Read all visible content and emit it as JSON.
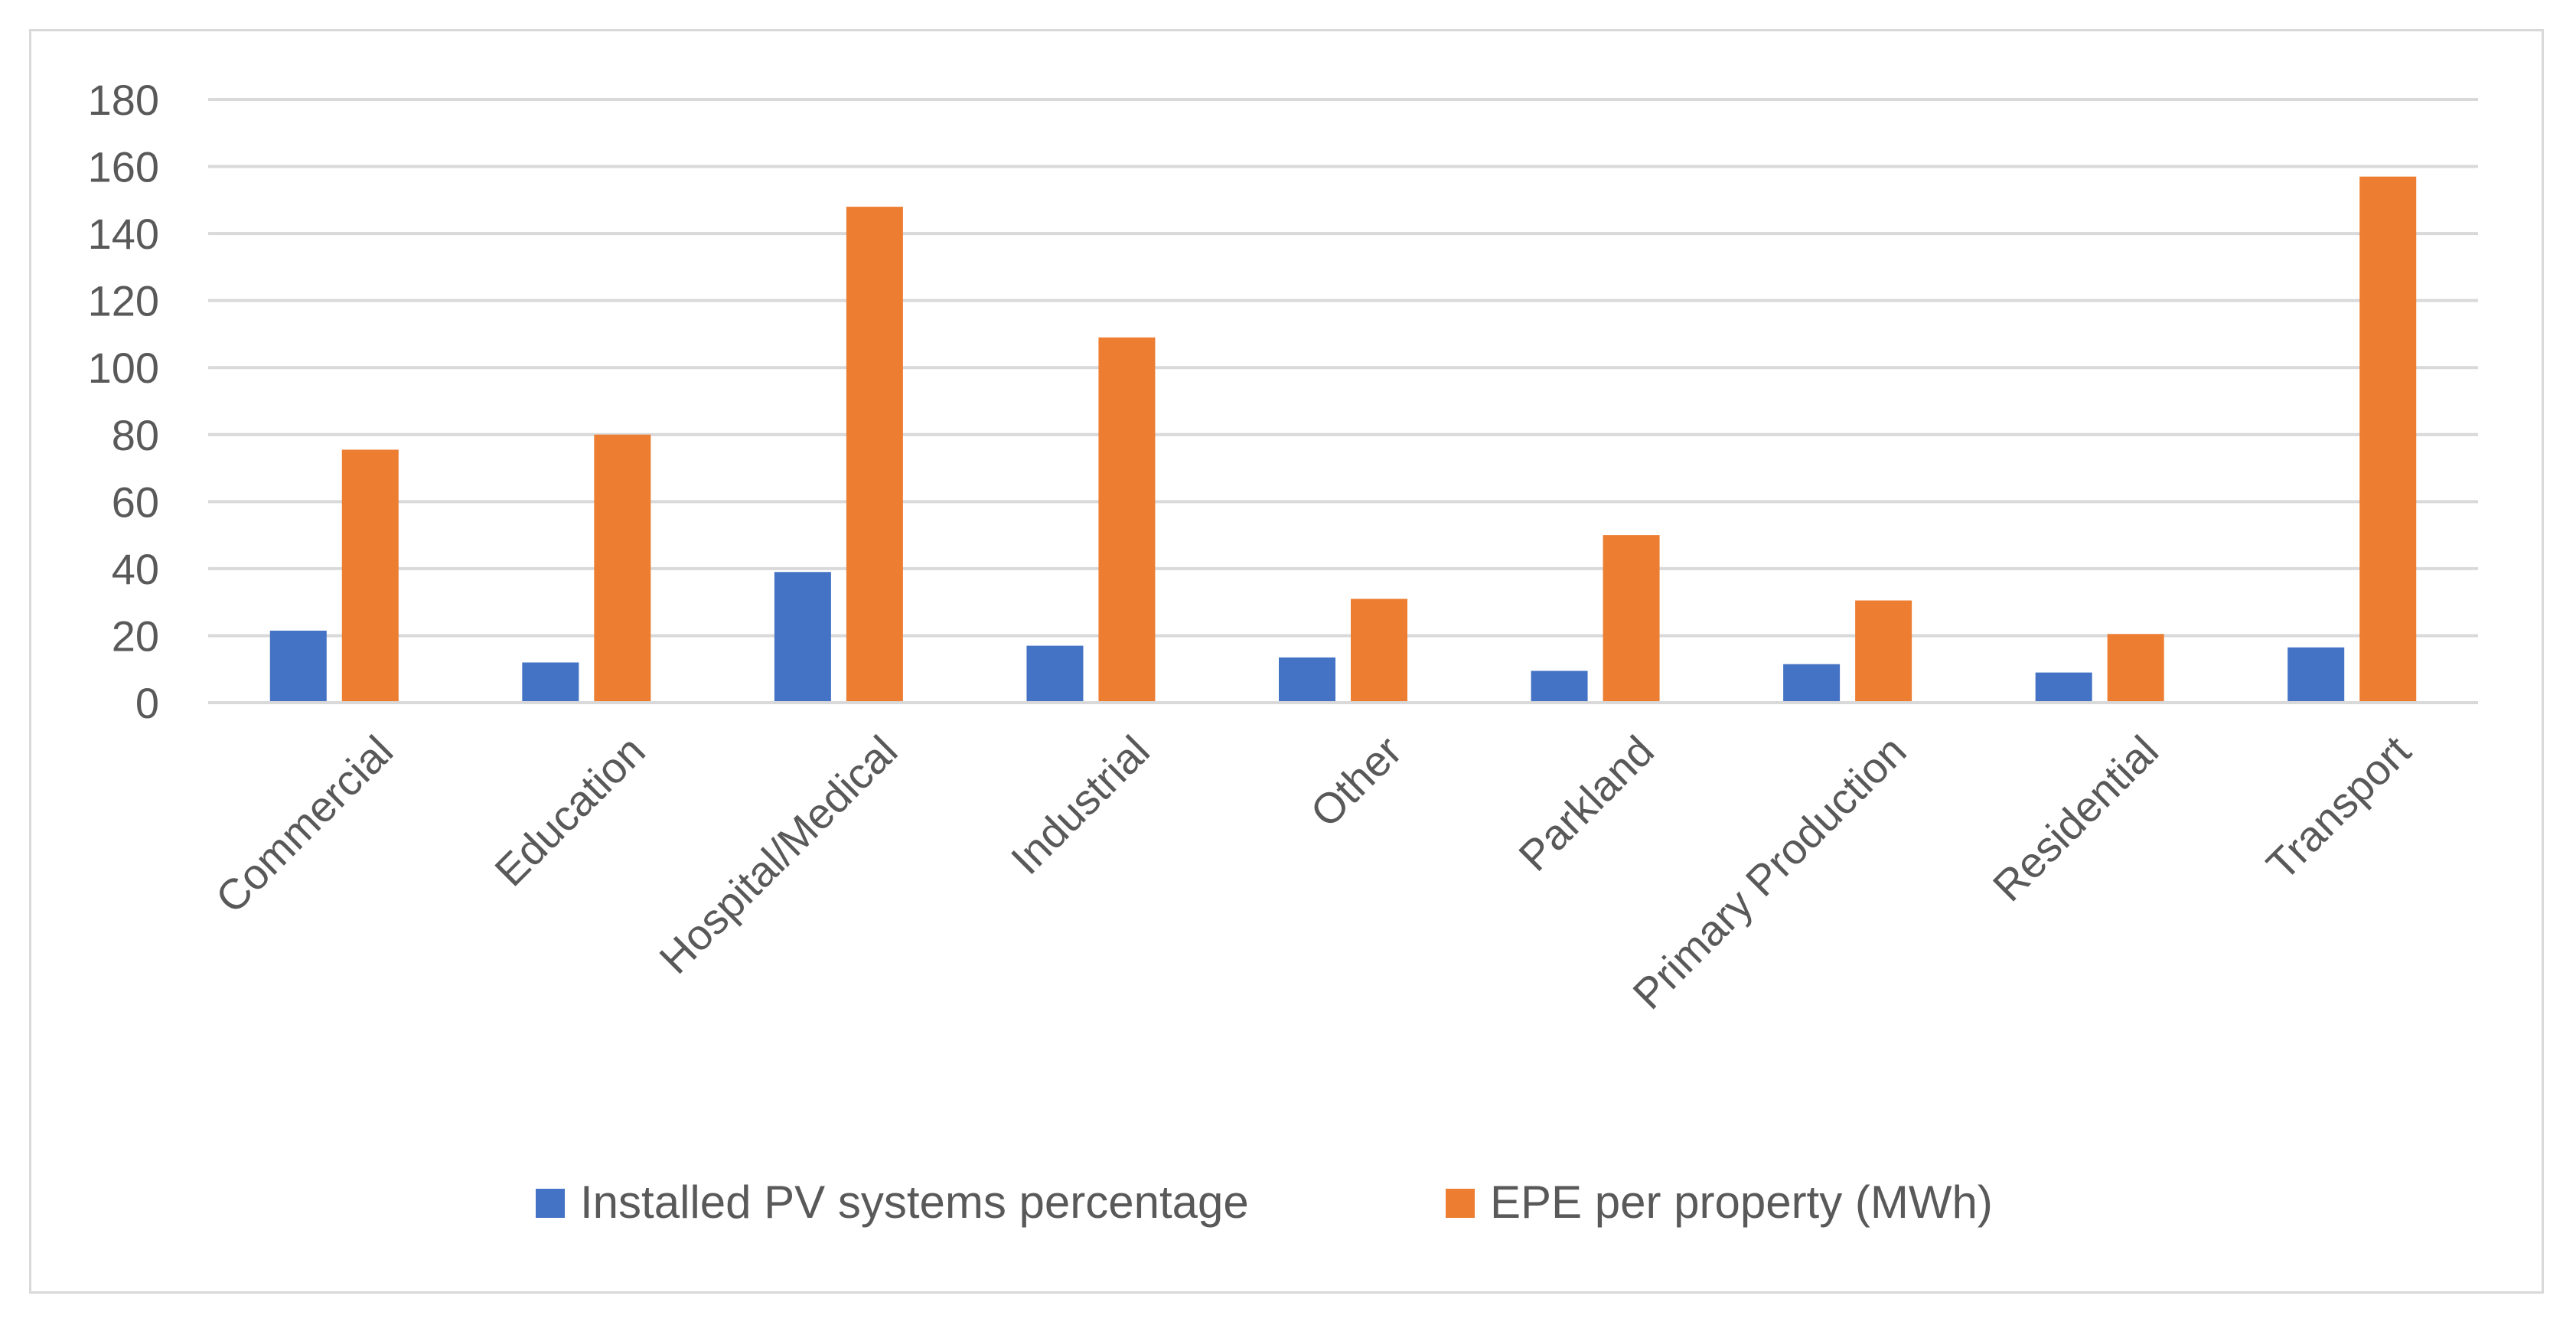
{
  "chart_data": {
    "type": "bar",
    "title": "",
    "xlabel": "",
    "ylabel": "",
    "ylim": [
      0,
      180
    ],
    "yticks": [
      0,
      20,
      40,
      60,
      80,
      100,
      120,
      140,
      160,
      180
    ],
    "grid": true,
    "legend_position": "bottom",
    "categories": [
      "Commercial",
      "Education",
      "Hospital/Medical",
      "Industrial",
      "Other",
      "Parkland",
      "Primary Production",
      "Residential",
      "Transport"
    ],
    "series": [
      {
        "name": "Installed PV systems percentage",
        "color": "#4472c4",
        "values": [
          21.5,
          12,
          39,
          17,
          13.5,
          9.5,
          11.5,
          9,
          16.5
        ]
      },
      {
        "name": "EPE per property (MWh)",
        "color": "#ed7d31",
        "values": [
          75.5,
          80,
          148,
          109,
          31,
          50,
          30.5,
          20.5,
          157
        ]
      }
    ]
  }
}
